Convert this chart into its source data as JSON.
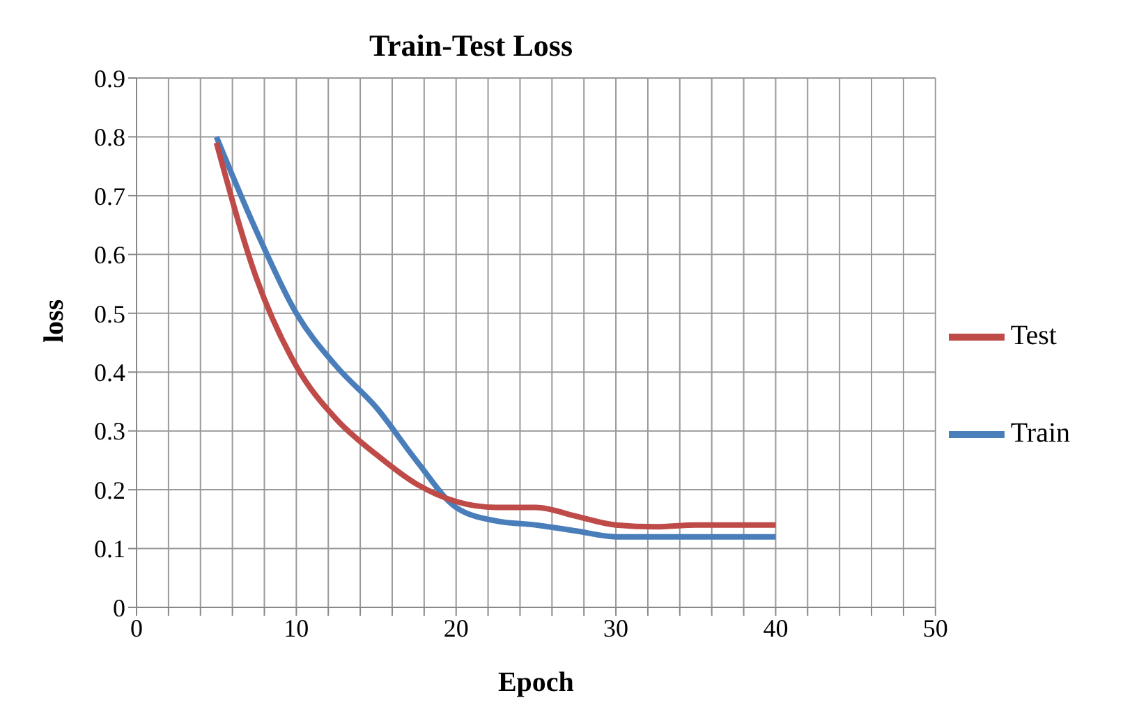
{
  "chart_data": {
    "type": "line",
    "title": "Train-Test Loss",
    "xlabel": "Epoch",
    "ylabel": "loss",
    "x": [
      5,
      7.5,
      10,
      12.5,
      15,
      17.5,
      20,
      22.5,
      25,
      27.5,
      30,
      32.5,
      35,
      40
    ],
    "series": [
      {
        "name": "Train",
        "color": "#4a7ebb",
        "values": [
          0.8,
          0.64,
          0.5,
          0.41,
          0.34,
          0.25,
          0.17,
          0.147,
          0.14,
          0.13,
          0.12,
          0.12,
          0.12,
          0.12
        ]
      },
      {
        "name": "Test",
        "color": "#be4b48",
        "values": [
          0.79,
          0.56,
          0.41,
          0.32,
          0.26,
          0.21,
          0.18,
          0.17,
          0.17,
          0.155,
          0.14,
          0.137,
          0.14,
          0.14
        ]
      }
    ],
    "xlim": [
      0,
      50
    ],
    "xticks": [
      0,
      {
        "value": 2,
        "label": null
      },
      {
        "value": 4,
        "label": null
      },
      {
        "value": 6,
        "label": null
      },
      {
        "value": 8,
        "label": null
      },
      10,
      {
        "value": 12,
        "label": null
      },
      {
        "value": 14,
        "label": null
      },
      {
        "value": 16,
        "label": null
      },
      {
        "value": 18,
        "label": null
      },
      20,
      {
        "value": 22,
        "label": null
      },
      {
        "value": 24,
        "label": null
      },
      {
        "value": 26,
        "label": null
      },
      {
        "value": 28,
        "label": null
      },
      30,
      {
        "value": 32,
        "label": null
      },
      {
        "value": 34,
        "label": null
      },
      {
        "value": 36,
        "label": null
      },
      {
        "value": 38,
        "label": null
      },
      40,
      {
        "value": 42,
        "label": null
      },
      {
        "value": 44,
        "label": null
      },
      {
        "value": 46,
        "label": null
      },
      {
        "value": 48,
        "label": null
      },
      50
    ],
    "ylim": [
      0,
      0.9
    ],
    "yticks": [
      0,
      0.1,
      0.2,
      0.3,
      0.4,
      0.5,
      0.6,
      0.7,
      0.8,
      0.9
    ],
    "grid": true,
    "legend": "right",
    "marker": "none",
    "line_style": "solid"
  }
}
